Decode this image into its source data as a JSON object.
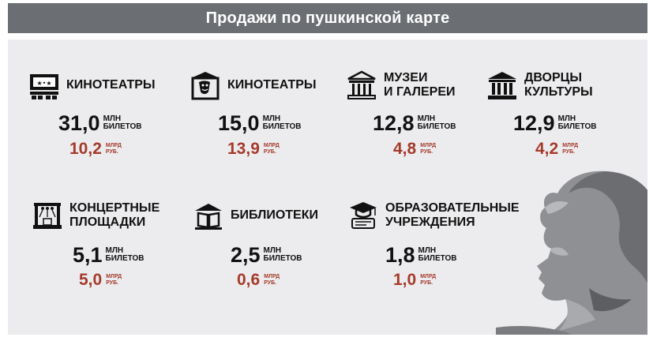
{
  "header": {
    "title": "Продажи по пушкинской карте"
  },
  "colors": {
    "banner": "#6b6e72",
    "panel": "#ececee",
    "accent_red": "#a53a2b",
    "text": "#111111"
  },
  "stats": [
    {
      "title": "КИНОТЕАТРЫ",
      "icon": "cinema-screen-icon",
      "tickets": "31,0",
      "tickets_unit": "МЛН\nБИЛЕТОВ",
      "revenue": "10,2",
      "revenue_unit": "МЛРД\nРУБ."
    },
    {
      "title": "КИНОТЕАТРЫ",
      "icon": "theater-masks-icon",
      "tickets": "15,0",
      "tickets_unit": "МЛН\nБИЛЕТОВ",
      "revenue": "13,9",
      "revenue_unit": "МЛРД\nРУБ."
    },
    {
      "title": "МУЗЕИ\nИ ГАЛЕРЕИ",
      "icon": "museum-icon",
      "tickets": "12,8",
      "tickets_unit": "МЛН\nБИЛЕТОВ",
      "revenue": "4,8",
      "revenue_unit": "МЛРД\nРУБ."
    },
    {
      "title": "ДВОРЦЫ\nКУЛЬТУРЫ",
      "icon": "palace-icon",
      "tickets": "12,9",
      "tickets_unit": "МЛН\nБИЛЕТОВ",
      "revenue": "4,2",
      "revenue_unit": "МЛРД\nРУБ."
    },
    {
      "title": "КОНЦЕРТНЫЕ\nПЛОЩАДКИ",
      "icon": "concert-stage-icon",
      "tickets": "5,1",
      "tickets_unit": "МЛН\nБИЛЕТОВ",
      "revenue": "5,0",
      "revenue_unit": "МЛРД\nРУБ."
    },
    {
      "title": "БИБЛИОТЕКИ",
      "icon": "library-book-icon",
      "tickets": "2,5",
      "tickets_unit": "МЛН\nБИЛЕТОВ",
      "revenue": "0,6",
      "revenue_unit": "МЛРД\nРУБ."
    },
    {
      "title": "ОБРАЗОВАТЕЛЬНЫЕ\nУЧРЕЖДЕНИЯ",
      "icon": "graduation-cap-icon",
      "tickets": "1,8",
      "tickets_unit": "МЛН\nБИЛЕТОВ",
      "revenue": "1,0",
      "revenue_unit": "МЛРД\nРУБ."
    }
  ]
}
